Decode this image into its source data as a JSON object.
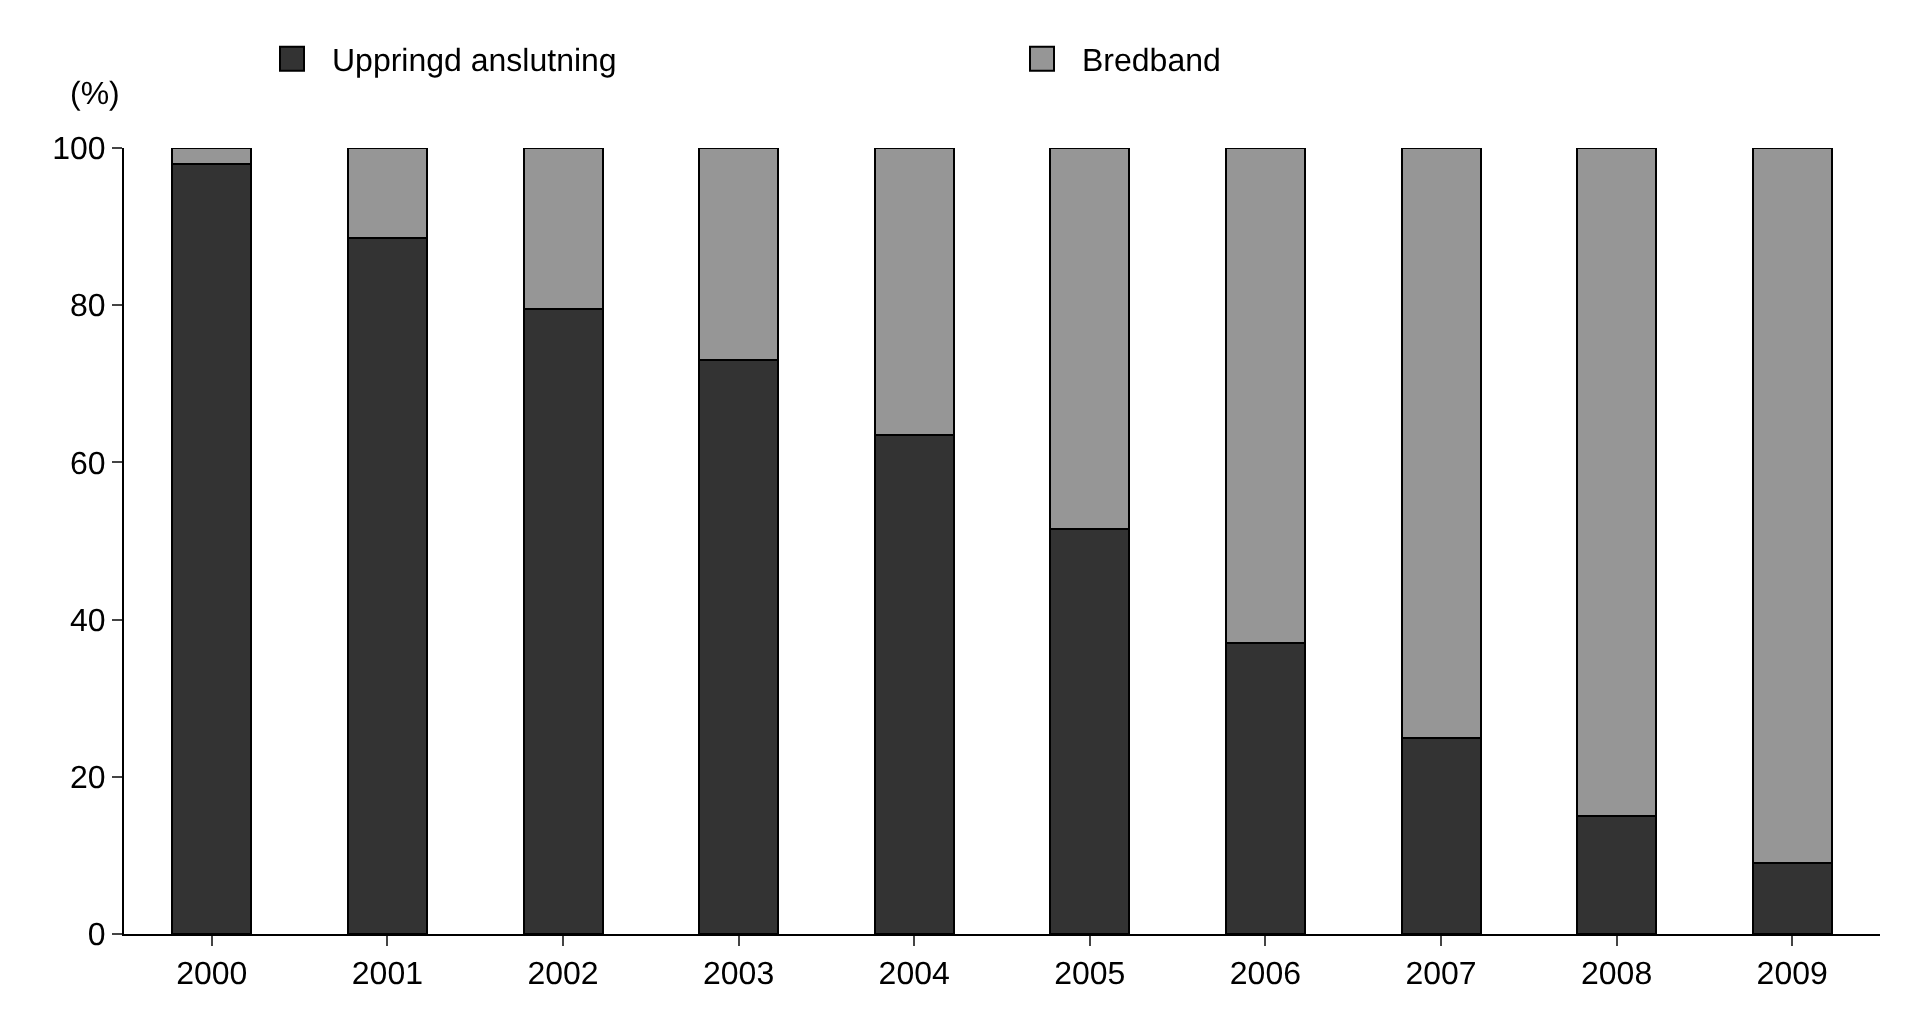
{
  "chart_data": {
    "type": "bar",
    "stacked": true,
    "ylabel": "(%)",
    "categories": [
      "2000",
      "2001",
      "2002",
      "2003",
      "2004",
      "2005",
      "2006",
      "2007",
      "2008",
      "2009"
    ],
    "series": [
      {
        "name": "Uppringd anslutning",
        "color": "#333333",
        "values": [
          98,
          88.5,
          79.5,
          73,
          63.5,
          51.5,
          37,
          25,
          15,
          9
        ]
      },
      {
        "name": "Bredband",
        "color": "#969696",
        "values": [
          2,
          11.5,
          20.5,
          27,
          36.5,
          48.5,
          63,
          75,
          85,
          91
        ]
      }
    ],
    "ylim": [
      0,
      100
    ],
    "yticks": [
      0,
      20,
      40,
      60,
      80,
      100
    ],
    "legend": "top"
  }
}
